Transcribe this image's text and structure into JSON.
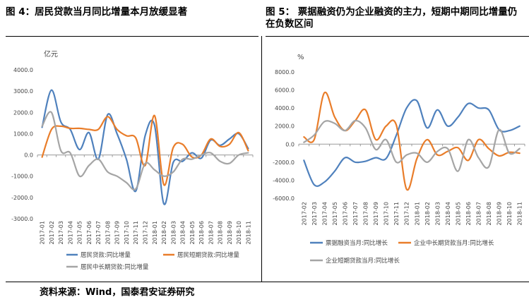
{
  "left_figure": {
    "title": "图 4：居民贷款当月同比增量本月放缓显著"
  },
  "right_figure": {
    "title_line1": "图 5：  票据融资仍为企业融资的主力，短期中期同比增量仍",
    "title_line2": "在负数区间"
  },
  "source": "资料来源：Wind，国泰君安证券研究",
  "chart_data": [
    {
      "type": "line",
      "title": "",
      "unit_label": "亿元",
      "xlabel": "",
      "ylabel": "亿元",
      "ylim": [
        -3000,
        4000
      ],
      "yticks": [
        -3000,
        -2000,
        -1000,
        0,
        1000,
        2000,
        3000,
        4000
      ],
      "ytick_labels": [
        "-3000.0",
        "-2000.0",
        "-1000.0",
        "0.0",
        "1000.0",
        "2000.0",
        "3000.0",
        "4000.0"
      ],
      "categories": [
        "2017-01",
        "2017-02",
        "2017-03",
        "2017-04",
        "2017-05",
        "2017-06",
        "2017-07",
        "2017-08",
        "2017-09",
        "2017-10",
        "2017-11",
        "2017-12",
        "2018-01",
        "2018-02",
        "2018-03",
        "2018-04",
        "2018-05",
        "2018-06",
        "2018-07",
        "2018-08",
        "2018-09",
        "2018-10",
        "2018-11"
      ],
      "grid": false,
      "legend_position": "bottom",
      "series": [
        {
          "name": "居民贷款:同比增量",
          "color": "#4f81bd",
          "values": [
            1300,
            3050,
            1550,
            1200,
            250,
            1050,
            -200,
            1900,
            1000,
            -200,
            -1700,
            900,
            1400,
            -2300,
            -350,
            -300,
            100,
            -150,
            700,
            450,
            750,
            1000,
            300
          ]
        },
        {
          "name": "居民短期贷款:同比增量",
          "color": "#e97d2a",
          "values": [
            -100,
            1200,
            1350,
            1250,
            1250,
            1200,
            1200,
            1800,
            1200,
            900,
            800,
            -500,
            1850,
            -1400,
            350,
            500,
            -100,
            0,
            750,
            400,
            500,
            1050,
            200
          ]
        },
        {
          "name": "居民中长期贷款:同比增量",
          "color": "#a5a5a5",
          "values": [
            1350,
            2000,
            200,
            100,
            -1000,
            -500,
            -200,
            -800,
            -1000,
            -1300,
            -1600,
            -400,
            -700,
            -1000,
            -800,
            -200,
            -200,
            0,
            100,
            -300,
            -400,
            0,
            100
          ]
        }
      ]
    },
    {
      "type": "line",
      "title": "",
      "unit_label": "%",
      "xlabel": "",
      "ylabel": "%",
      "ylim": [
        -6000,
        8000
      ],
      "yticks": [
        -6000,
        -4000,
        -2000,
        0,
        2000,
        4000,
        6000,
        8000
      ],
      "ytick_labels": [
        "-6000.0",
        "-4000.0",
        "-2000.0",
        "0.0",
        "2000.0",
        "4000.0",
        "6000.0",
        "8000.0"
      ],
      "categories": [
        "2017-02",
        "2017-03",
        "2017-04",
        "2017-05",
        "2017-06",
        "2017-07",
        "2017-08",
        "2017-09",
        "2017-10",
        "2017-11",
        "2017-12",
        "2018-01",
        "2018-02",
        "2018-03",
        "2018-04",
        "2018-05",
        "2018-06",
        "2018-07",
        "2018-08",
        "2018-09",
        "2018-10",
        "2018-11"
      ],
      "grid": false,
      "legend_position": "bottom",
      "series": [
        {
          "name": "票据融资当月:同比增长",
          "color": "#4f81bd",
          "values": [
            -1800,
            -4500,
            -4200,
            -3000,
            -1500,
            -2000,
            -1900,
            -1500,
            -1600,
            1000,
            4000,
            4800,
            1800,
            3800,
            2000,
            3000,
            4500,
            4000,
            3800,
            1600,
            1500,
            2000
          ]
        },
        {
          "name": "企业中长期贷款当月:同比增长",
          "color": "#e97d2a",
          "values": [
            800,
            500,
            5700,
            3000,
            1500,
            2600,
            3800,
            500,
            2000,
            2100,
            -5000,
            -1600,
            500,
            -1200,
            -800,
            -400,
            -1800,
            500,
            -500,
            -1300,
            -900,
            -1000
          ]
        },
        {
          "name": "企业短期贷款当月:同比增长",
          "color": "#a5a5a5",
          "values": [
            200,
            1000,
            2500,
            2300,
            1500,
            2600,
            1800,
            -600,
            500,
            -2000,
            -1200,
            -1000,
            -2000,
            -800,
            -500,
            -3000,
            500,
            -1500,
            -2500,
            1600,
            -1000,
            -500
          ]
        }
      ]
    }
  ]
}
